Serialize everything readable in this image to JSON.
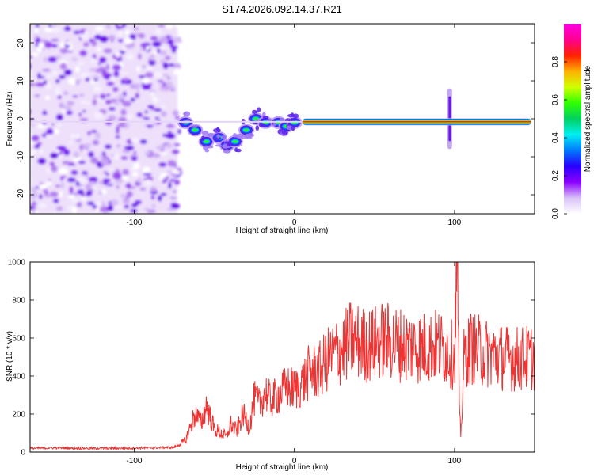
{
  "title": "S174.2026.092.14.37.R21",
  "chart_data": [
    {
      "type": "heatmap",
      "xlabel": "Height of straight line (km)",
      "ylabel": "Frequency (Hz)",
      "xlim": [
        -165,
        150
      ],
      "ylim": [
        -25,
        25
      ],
      "xticks": [
        -100,
        0,
        100
      ],
      "yticks": [
        20,
        10,
        0,
        -10,
        -20
      ],
      "colorbar": {
        "label": "Normalized spectral amplitude",
        "range": [
          0,
          1
        ],
        "ticks": [
          "0.0",
          "0.2",
          "0.4",
          "0.6",
          "0.8"
        ],
        "colormap": [
          "#ffffff",
          "#d9c2f7",
          "#8a00ff",
          "#2800ff",
          "#0078ff",
          "#00f0f0",
          "#00d060",
          "#30ff00",
          "#d0ff00",
          "#ffb000",
          "#ff2000",
          "#ff0090",
          "#ff00e6"
        ]
      },
      "features": [
        {
          "name": "broadband noise",
          "x_range": [
            -165,
            -73
          ],
          "freq_range": [
            -25,
            25
          ]
        },
        {
          "name": "fragmented signal",
          "points": [
            [
              -68,
              -1
            ],
            [
              -62,
              -3
            ],
            [
              -55,
              -6
            ],
            [
              -47,
              -5
            ],
            [
              -42,
              -7
            ],
            [
              -37,
              -6
            ],
            [
              -30,
              -3
            ],
            [
              -24,
              0
            ],
            [
              -18,
              -1
            ],
            [
              -10,
              -1
            ],
            [
              -5,
              -2
            ],
            [
              0,
              -1
            ]
          ]
        },
        {
          "name": "steady tone",
          "x_range": [
            5,
            148
          ],
          "freq": -0.8
        },
        {
          "name": "broadband spike",
          "x": 97,
          "freq_range": [
            -8,
            8
          ]
        }
      ]
    },
    {
      "type": "line",
      "xlabel": "Height of straight line (km)",
      "ylabel": "SNR (10 * v/v)",
      "xlim": [
        -165,
        150
      ],
      "ylim": [
        0,
        1000
      ],
      "xticks": [
        -100,
        0,
        100
      ],
      "yticks": [
        0,
        200,
        400,
        600,
        800,
        1000
      ],
      "series": [
        {
          "name": "SNR",
          "color": "#ee3333",
          "x": [
            -165,
            -150,
            -130,
            -110,
            -90,
            -75,
            -68,
            -62,
            -58,
            -55,
            -50,
            -46,
            -42,
            -40,
            -36,
            -32,
            -28,
            -25,
            -22,
            -18,
            -15,
            -10,
            -5,
            0,
            5,
            10,
            15,
            20,
            25,
            30,
            35,
            40,
            45,
            50,
            55,
            60,
            70,
            80,
            90,
            95,
            100,
            101,
            102,
            103,
            104,
            105,
            106,
            110,
            120,
            130,
            140,
            150
          ],
          "values": [
            20,
            22,
            20,
            20,
            22,
            25,
            60,
            200,
            150,
            250,
            120,
            100,
            80,
            150,
            110,
            200,
            130,
            280,
            250,
            320,
            270,
            300,
            340,
            330,
            360,
            430,
            420,
            480,
            520,
            540,
            590,
            580,
            560,
            570,
            590,
            580,
            560,
            550,
            560,
            540,
            500,
            850,
            950,
            200,
            90,
            300,
            500,
            550,
            520,
            500,
            490,
            500
          ]
        }
      ]
    }
  ]
}
